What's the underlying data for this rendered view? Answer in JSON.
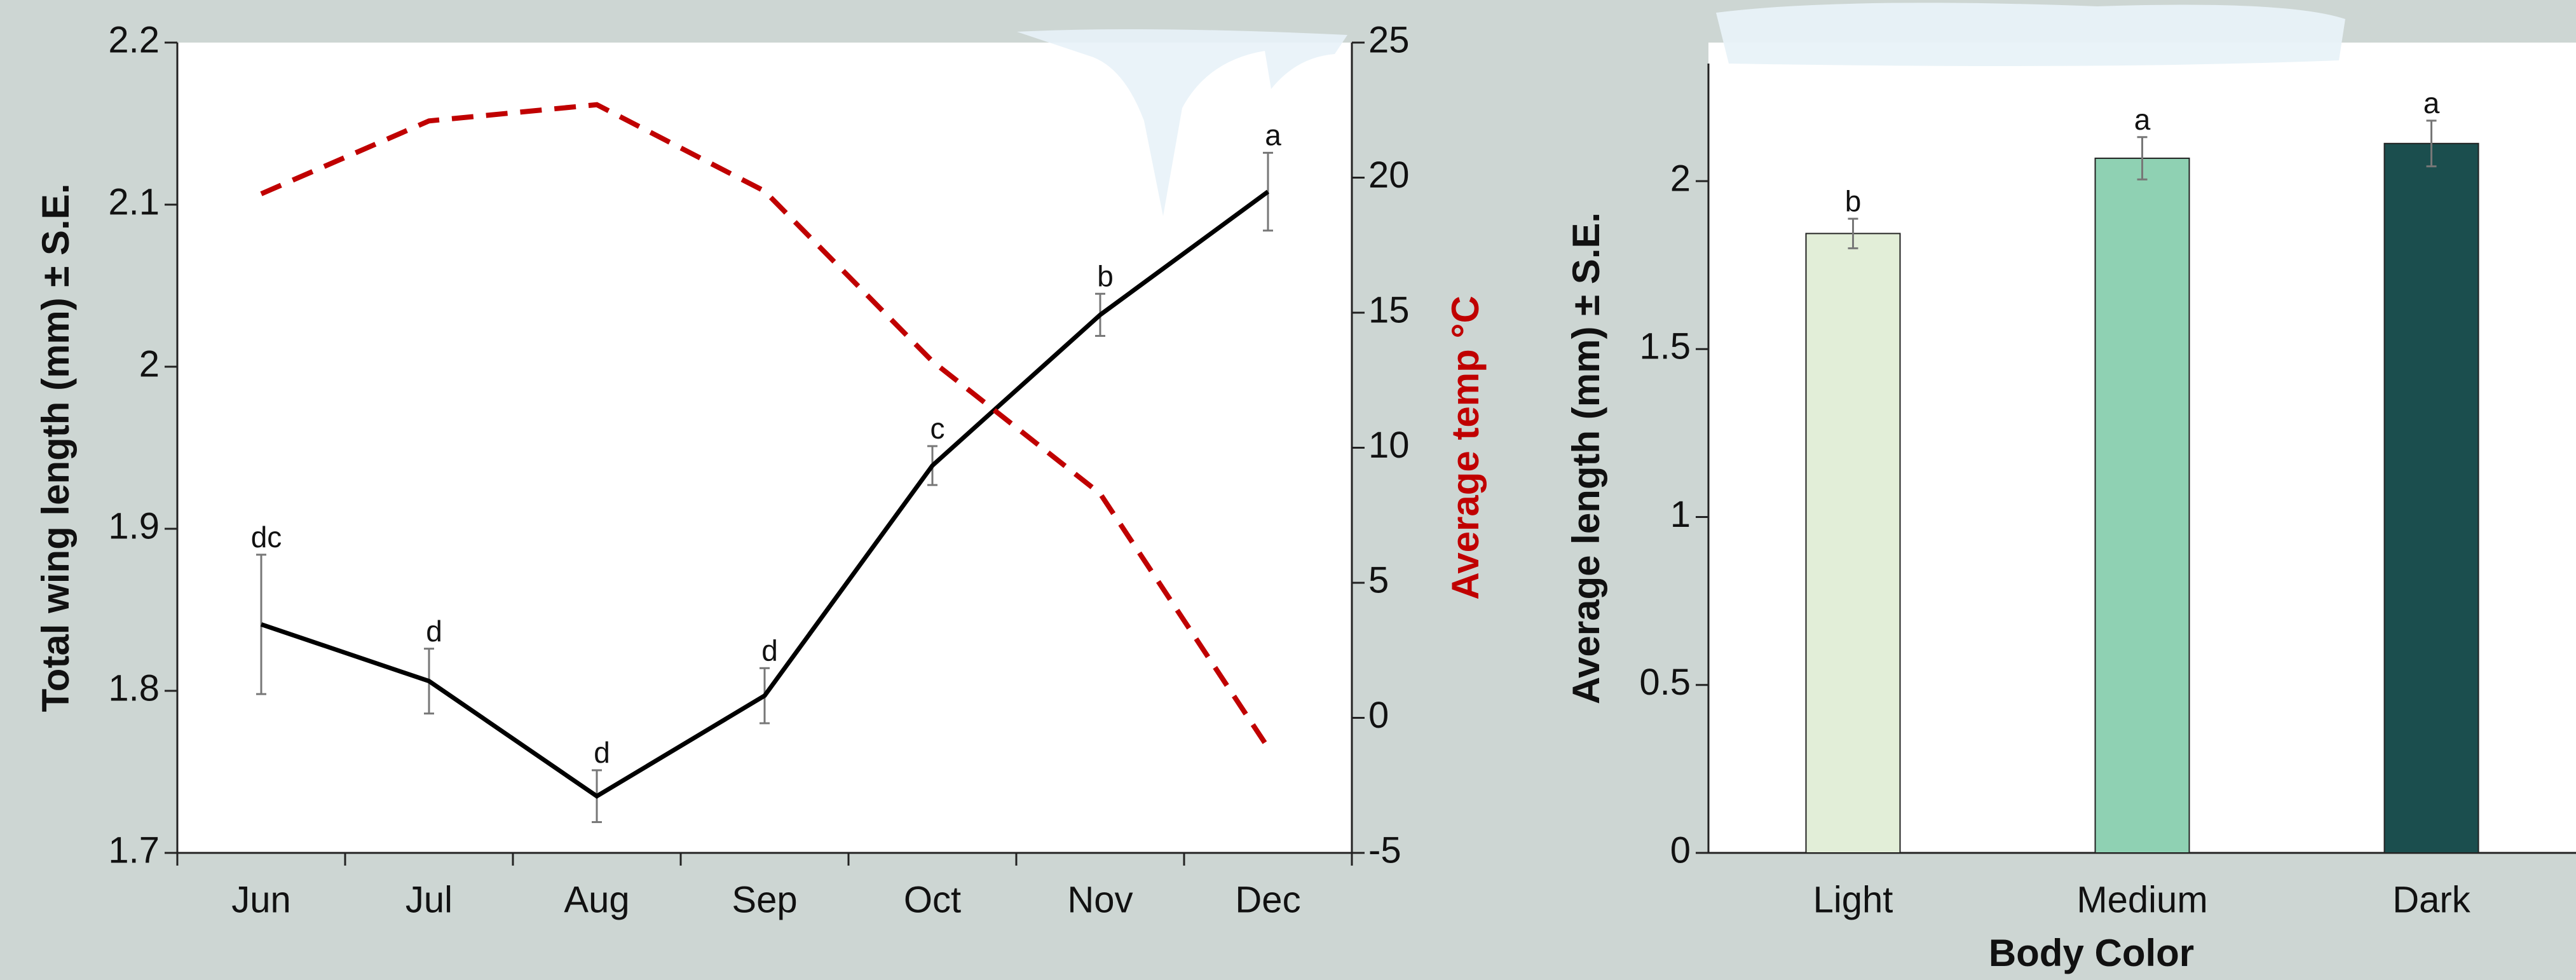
{
  "chart_data": [
    {
      "type": "line",
      "categories": [
        "Jun",
        "Jul",
        "Aug",
        "Sep",
        "Oct",
        "Nov",
        "Dec"
      ],
      "y_label": "Total wing length (mm) ± S.E.",
      "y2_label": "Average temp °C",
      "y2_label_color": "#c00000",
      "ylim": [
        1.7,
        2.2
      ],
      "yticks": [
        1.7,
        1.8,
        1.9,
        2,
        2.1,
        2.2
      ],
      "y2lim": [
        -5,
        25
      ],
      "y2ticks": [
        -5,
        0,
        5,
        10,
        15,
        20,
        25
      ],
      "series": [
        {
          "color": "#000000",
          "values": [
            1.841,
            1.806,
            1.735,
            1.797,
            1.939,
            2.032,
            2.108
          ],
          "errors": [
            0.043,
            0.02,
            0.016,
            0.017,
            0.012,
            0.013,
            0.024
          ],
          "letters": [
            "dc",
            "d",
            "d",
            "d",
            "c",
            "b",
            "a"
          ]
        },
        {
          "color": "#c00000",
          "axis": "y2",
          "dashed": true,
          "values": [
            19.4,
            22.1,
            22.7,
            19.5,
            13.2,
            8.3,
            -1.1
          ]
        }
      ]
    },
    {
      "type": "bar",
      "categories": [
        "Light",
        "Medium",
        "Dark"
      ],
      "x_label": "Body Color",
      "y_label": "Average length (mm) ± S.E.",
      "ylim": [
        0,
        2.35
      ],
      "yticks": [
        0,
        0.5,
        1,
        1.5,
        2
      ],
      "colors": [
        "#e2eed8",
        "#8fd1b3",
        "#1b4e4e"
      ],
      "values": [
        1.844,
        2.068,
        2.112
      ],
      "errors": [
        0.044,
        0.063,
        0.068
      ],
      "letters": [
        "b",
        "a",
        "a"
      ]
    }
  ]
}
